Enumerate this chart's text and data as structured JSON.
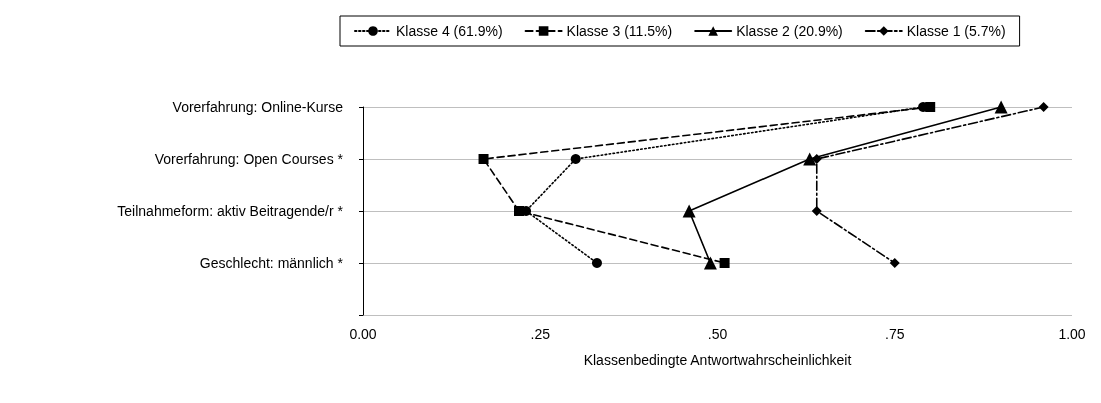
{
  "chart_data": {
    "type": "line",
    "orientation": "horizontal",
    "categories": [
      "Vorerfahrung: Online-Kurse",
      "Vorerfahrung: Open Courses *",
      "Teilnahmeform: aktiv Beitragende/r *",
      "Geschlecht: männlich *",
      null
    ],
    "series": [
      {
        "name": "Klasse 4 (61.9%)",
        "color": "#000000",
        "marker": "circle",
        "line_style": "dotted",
        "values": [
          0.79,
          0.3,
          0.23,
          0.33,
          null
        ]
      },
      {
        "name": "Klasse 3 (11.5%)",
        "color": "#000000",
        "marker": "square",
        "line_style": "dashed",
        "values": [
          0.8,
          0.17,
          0.22,
          0.51,
          null
        ]
      },
      {
        "name": "Klasse 2 (20.9%)",
        "color": "#000000",
        "marker": "triangle",
        "line_style": "solid",
        "values": [
          0.9,
          0.63,
          0.46,
          0.49,
          null
        ]
      },
      {
        "name": "Klasse 1 (5.7%)",
        "color": "#000000",
        "marker": "diamond",
        "line_style": "dashdot",
        "values": [
          0.96,
          0.64,
          0.64,
          0.75,
          null
        ]
      }
    ],
    "xlabel": "Klassenbedingte Antwortwahrscheinlichkeit",
    "xlim": [
      0,
      1
    ],
    "xticks": [
      {
        "value": 0,
        "label": "0.00"
      },
      {
        "value": 0.25,
        "label": ".25"
      },
      {
        "value": 0.5,
        "label": ".50"
      },
      {
        "value": 0.75,
        "label": ".75"
      },
      {
        "value": 1,
        "label": "1.00"
      }
    ],
    "grid": "y",
    "legend": "top"
  }
}
